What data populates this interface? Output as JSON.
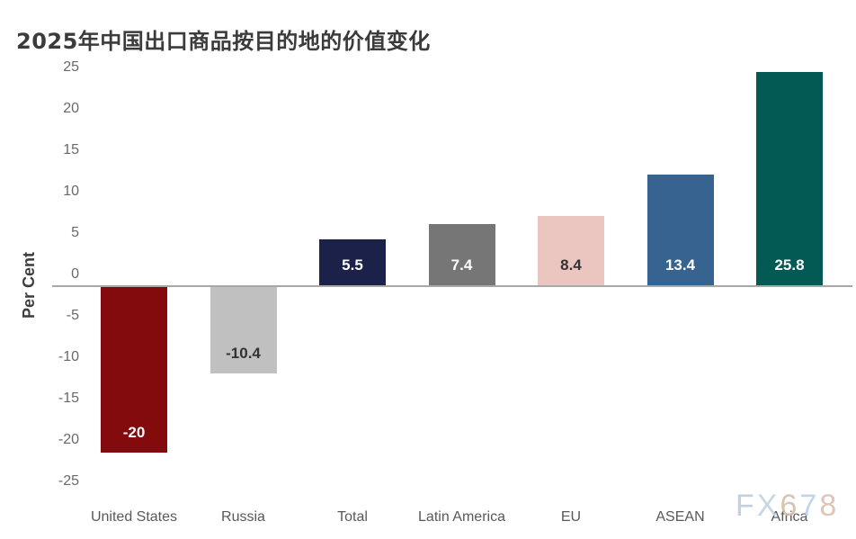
{
  "title": "2025年中国出口商品按目的地的价值变化",
  "watermark": {
    "text": "FX678",
    "letters": [
      {
        "ch": "F",
        "color": "#b7cbdf"
      },
      {
        "ch": "X",
        "color": "#c3d2e0"
      },
      {
        "ch": "6",
        "color": "#d3bda6"
      },
      {
        "ch": "7",
        "color": "#b9cfe7"
      },
      {
        "ch": "8",
        "color": "#d8bfae"
      }
    ]
  },
  "chart_data": {
    "type": "bar",
    "title": "2025年中国出口商品按目的地的价值变化",
    "ylabel": "Per Cent",
    "xlabel": "",
    "categories": [
      "United States",
      "Russia",
      "Total",
      "Latin America",
      "EU",
      "ASEAN",
      "Africa"
    ],
    "values": [
      -20,
      -10.4,
      5.5,
      7.4,
      8.4,
      13.4,
      25.8
    ],
    "value_labels": [
      "-20",
      "-10.4",
      "5.5",
      "7.4",
      "8.4",
      "13.4",
      "25.8"
    ],
    "bar_colors": [
      "#830a0d",
      "#c0c0c0",
      "#1b2149",
      "#767676",
      "#ebc5c0",
      "#366390",
      "#035a54"
    ],
    "value_label_colors": [
      "#ffffff",
      "#333333",
      "#ffffff",
      "#ffffff",
      "#333333",
      "#ffffff",
      "#ffffff"
    ],
    "ylim": [
      -25,
      25
    ],
    "yticks": [
      25,
      20,
      15,
      10,
      5,
      0,
      -5,
      -10,
      -15,
      -20,
      -25
    ],
    "grid": false,
    "legend": null,
    "axis_line_color": "#a8a8a8"
  }
}
